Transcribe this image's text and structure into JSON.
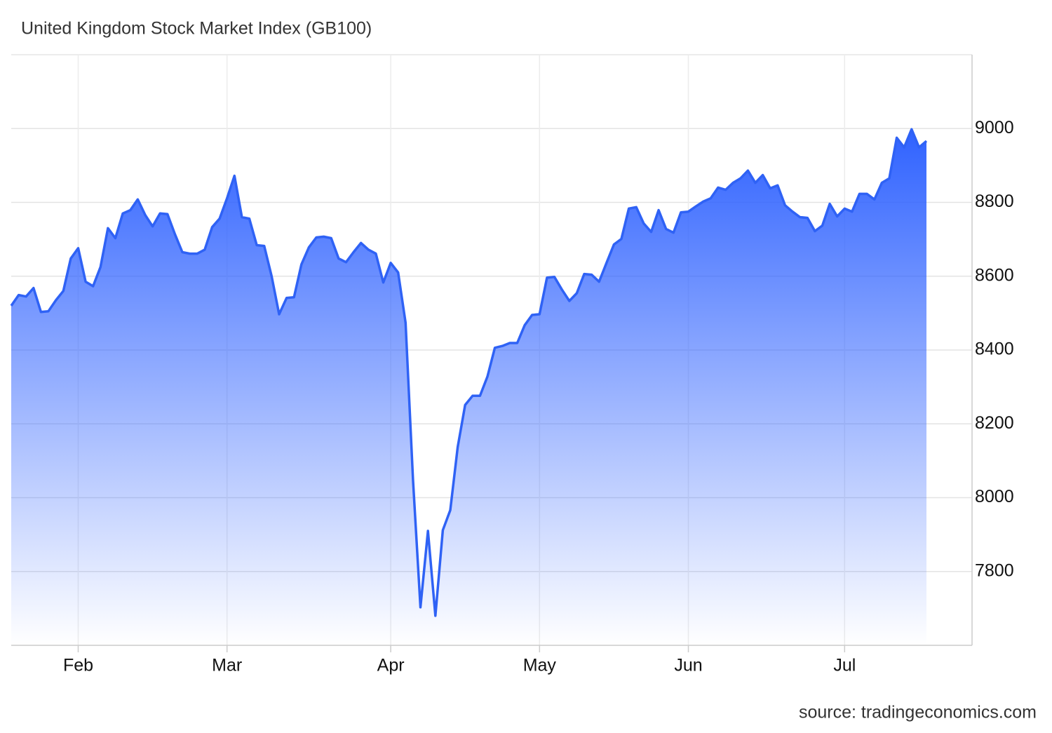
{
  "chart_data": {
    "type": "area",
    "title": "United Kingdom Stock Market Index (GB100)",
    "source": "source: tradingeconomics.com",
    "color": "#2f62f5",
    "grid": true,
    "ylim": [
      7600,
      9200
    ],
    "yticks": [
      7800,
      8000,
      8200,
      8400,
      8600,
      8800,
      9000
    ],
    "categories": [
      null,
      null,
      null,
      null,
      null,
      null,
      null,
      null,
      null,
      "Feb",
      null,
      null,
      null,
      null,
      null,
      null,
      null,
      null,
      null,
      null,
      null,
      null,
      null,
      null,
      null,
      null,
      null,
      null,
      null,
      "Mar",
      null,
      null,
      null,
      null,
      null,
      null,
      null,
      null,
      null,
      null,
      null,
      null,
      null,
      null,
      null,
      null,
      null,
      null,
      null,
      null,
      null,
      "Apr",
      null,
      null,
      null,
      null,
      null,
      null,
      null,
      null,
      null,
      null,
      null,
      null,
      null,
      null,
      null,
      null,
      null,
      null,
      null,
      "May",
      null,
      null,
      null,
      null,
      null,
      null,
      null,
      null,
      null,
      null,
      null,
      null,
      null,
      null,
      null,
      null,
      null,
      null,
      null,
      "Jun",
      null,
      null,
      null,
      null,
      null,
      null,
      null,
      null,
      null,
      null,
      null,
      null,
      null,
      null,
      null,
      null,
      null,
      null,
      null,
      null,
      "Jul",
      null,
      null,
      null,
      null,
      null,
      null,
      null,
      null,
      null,
      null,
      null
    ],
    "values": [
      8520,
      8549,
      8545,
      8568,
      8503,
      8505,
      8535,
      8560,
      8648,
      8676,
      8585,
      8573,
      8625,
      8730,
      8703,
      8770,
      8779,
      8808,
      8766,
      8735,
      8770,
      8768,
      8714,
      8665,
      8661,
      8661,
      8672,
      8733,
      8756,
      8811,
      8872,
      8760,
      8756,
      8684,
      8682,
      8600,
      8497,
      8541,
      8543,
      8632,
      8678,
      8705,
      8707,
      8703,
      8648,
      8638,
      8665,
      8690,
      8672,
      8661,
      8583,
      8636,
      8610,
      8474,
      8048,
      7703,
      7910,
      7680,
      7912,
      7966,
      8137,
      8251,
      8276,
      8276,
      8328,
      8406,
      8411,
      8419,
      8419,
      8467,
      8495,
      8497,
      8596,
      8598,
      8564,
      8533,
      8554,
      8606,
      8604,
      8585,
      8636,
      8686,
      8701,
      8783,
      8787,
      8743,
      8720,
      8779,
      8728,
      8718,
      8773,
      8775,
      8789,
      8802,
      8811,
      8840,
      8834,
      8853,
      8865,
      8886,
      8853,
      8874,
      8838,
      8846,
      8792,
      8775,
      8760,
      8758,
      8722,
      8737,
      8796,
      8762,
      8783,
      8775,
      8823,
      8823,
      8808,
      8853,
      8865,
      8975,
      8949,
      8998,
      8949,
      8966
    ]
  }
}
